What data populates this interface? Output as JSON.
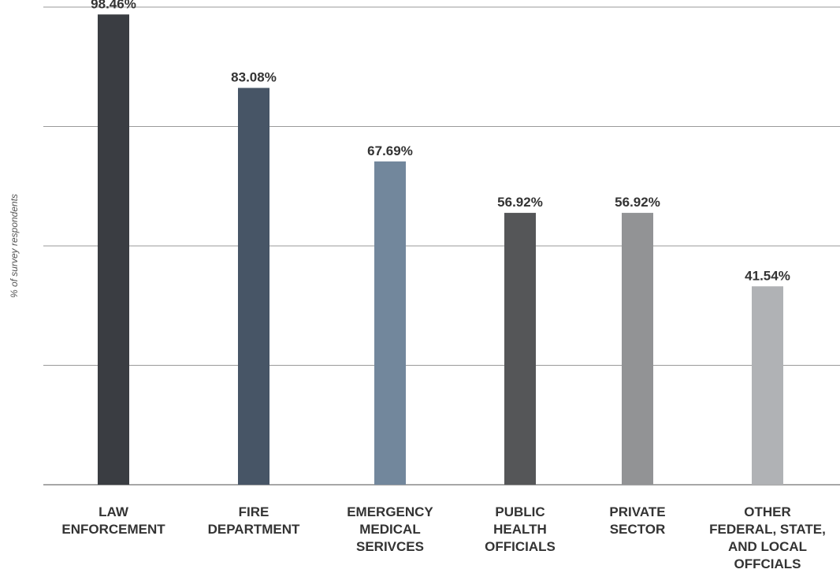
{
  "chart_data": {
    "type": "bar",
    "categories": [
      [
        "LAW",
        "ENFORCEMENT"
      ],
      [
        "FIRE",
        "DEPARTMENT"
      ],
      [
        "EMERGENCY",
        "MEDICAL",
        "SERIVCES"
      ],
      [
        "PUBLIC",
        "HEALTH",
        "OFFICIALS"
      ],
      [
        "PRIVATE",
        "SECTOR"
      ],
      [
        "OTHER",
        "FEDERAL, STATE,",
        "AND LOCAL",
        "OFFCIALS"
      ]
    ],
    "values": [
      98.46,
      83.08,
      67.69,
      56.92,
      56.92,
      41.54
    ],
    "value_labels": [
      "98.46%",
      "83.08%",
      "67.69%",
      "56.92%",
      "56.92%",
      "41.54%"
    ],
    "colors": [
      "#3a3d42",
      "#475566",
      "#72879c",
      "#555658",
      "#929395",
      "#b0b2b5"
    ],
    "title": "",
    "xlabel": "",
    "ylabel": "% of survey respondents",
    "ylim": [
      0,
      100
    ],
    "grid": true,
    "legend": "none"
  }
}
